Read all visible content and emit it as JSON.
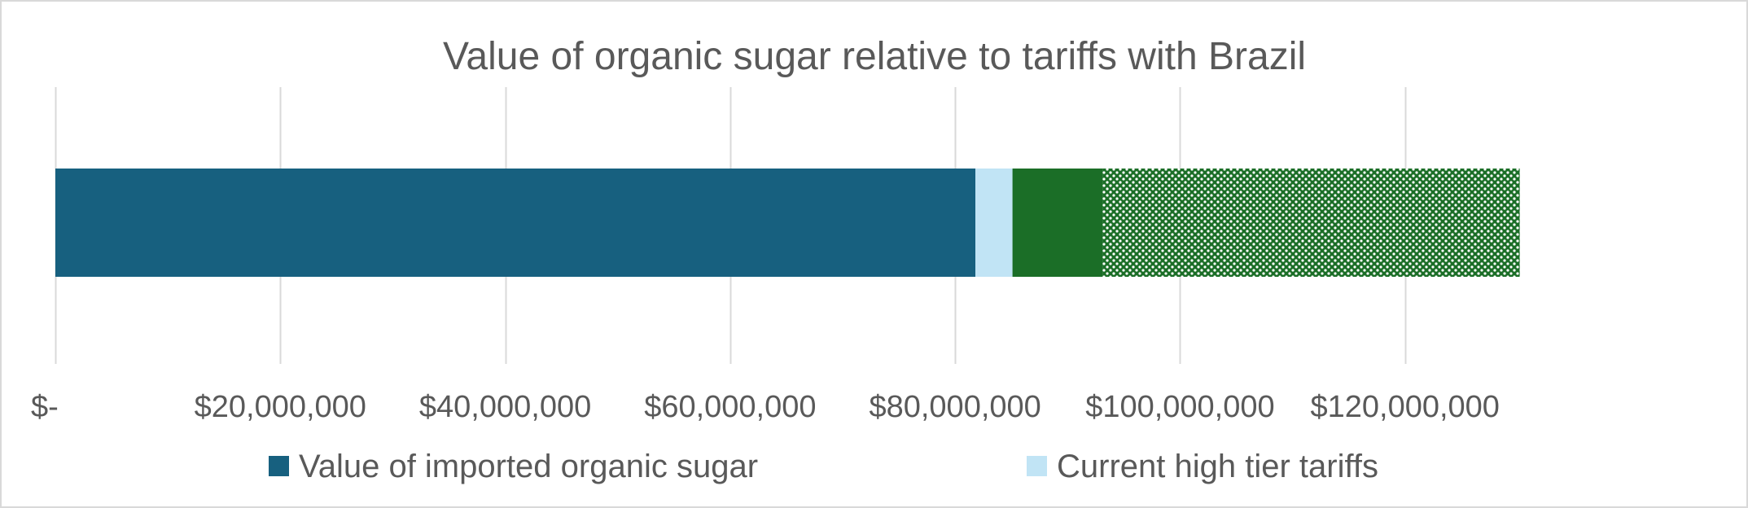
{
  "chart_data": {
    "type": "bar",
    "orientation": "horizontal",
    "stacked": true,
    "title": "Value of organic sugar relative to tariffs with Brazil",
    "xlabel": "",
    "ylabel": "",
    "xlim": [
      0,
      140000000
    ],
    "grid": true,
    "categories": [
      ""
    ],
    "ticks": [
      {
        "value": 0,
        "label": "$-"
      },
      {
        "value": 20000000,
        "label": "$20,000,000"
      },
      {
        "value": 40000000,
        "label": "$40,000,000"
      },
      {
        "value": 60000000,
        "label": "$60,000,000"
      },
      {
        "value": 80000000,
        "label": "$80,000,000"
      },
      {
        "value": 100000000,
        "label": "$100,000,000"
      },
      {
        "value": 120000000,
        "label": "$120,000,000"
      }
    ],
    "series": [
      {
        "name": "Value of imported organic sugar",
        "values": [
          81800000
        ],
        "color": "#17607f",
        "pattern": "solid"
      },
      {
        "name": "Current high tier tariffs",
        "values": [
          3300000
        ],
        "color": "#c1e4f5",
        "pattern": "solid"
      },
      {
        "name": "",
        "values": [
          8000000
        ],
        "color": "#1b6e27",
        "pattern": "solid"
      },
      {
        "name": "",
        "values": [
          37100000
        ],
        "color": "#1b6e27",
        "pattern": "dotted"
      }
    ],
    "legend": {
      "position": "bottom",
      "entries": [
        {
          "label": "Value of imported organic sugar",
          "color": "#17607f"
        },
        {
          "label": "Current high tier tariffs",
          "color": "#c1e4f5"
        }
      ]
    }
  }
}
